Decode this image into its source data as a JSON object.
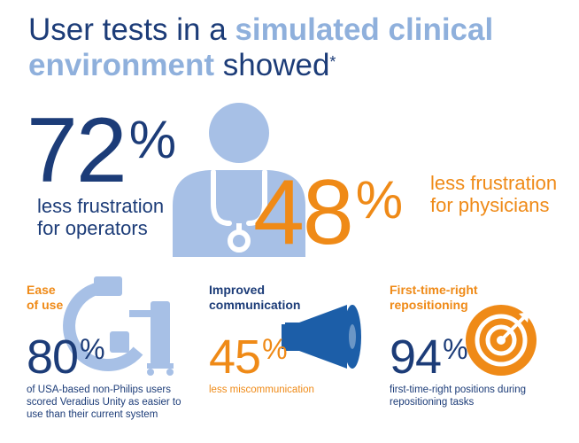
{
  "title": {
    "part1": "User tests in a ",
    "part2": "simulated clinical",
    "part3": "environment",
    "part4": " showed",
    "mark": "*"
  },
  "colors": {
    "navy": "#1c3c78",
    "light_blue": "#a7c0e6",
    "orange": "#ef8a17"
  },
  "stats": {
    "operators": {
      "value": "72",
      "symbol": "%",
      "label_line1": "less frustration",
      "label_line2": "for operators"
    },
    "physicians": {
      "value": "48",
      "symbol": "%",
      "label_line1": "less frustration",
      "label_line2": "for physicians"
    }
  },
  "sections": [
    {
      "title_line1": "Ease",
      "title_line2": "of use",
      "value": "80",
      "symbol": "%",
      "desc_line1": "of USA-based non-Philips users",
      "desc_line2": "scored Veradius Unity as easier to",
      "desc_line3": "use than their current system",
      "icon": "c-arm-icon"
    },
    {
      "title_line1": "Improved",
      "title_line2": "communication",
      "value": "45",
      "symbol": "%",
      "desc_line1": "less miscommunication",
      "icon": "megaphone-icon"
    },
    {
      "title_line1": "First-time-right",
      "title_line2": "repositioning",
      "value": "94",
      "symbol": "%",
      "desc_line1": "first-time-right positions during",
      "desc_line2": "repositioning tasks",
      "icon": "target-icon"
    }
  ]
}
